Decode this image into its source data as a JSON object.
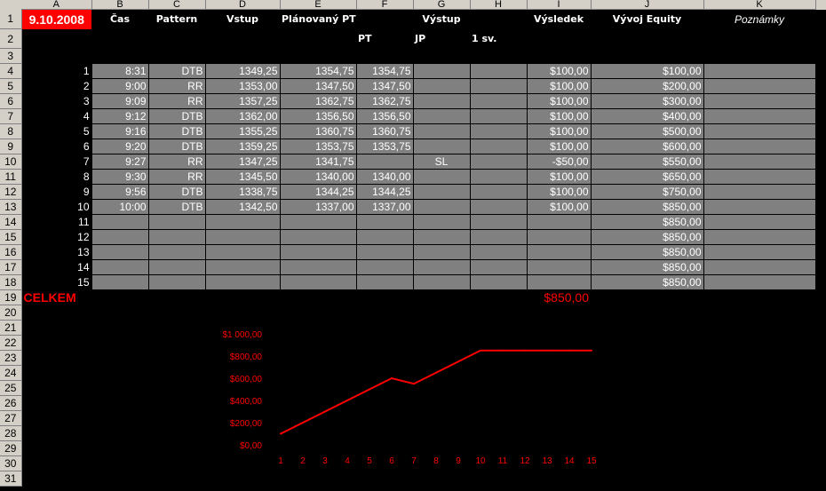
{
  "columns": [
    "A",
    "B",
    "C",
    "D",
    "E",
    "F",
    "G",
    "H",
    "I",
    "J",
    "K"
  ],
  "header": {
    "date": "9.10.2008",
    "cas": "Čas",
    "pattern": "Pattern",
    "vstup": "Vstup",
    "planovany": "Plánovaný PT",
    "vystup": "Výstup",
    "vysledek": "Výsledek",
    "equity": "Vývoj Equity",
    "poznamky": "Poznámky",
    "pt": "PT",
    "jp": "JP",
    "sv": "1 sv."
  },
  "trades": [
    {
      "n": "1",
      "cas": "8:31",
      "pattern": "DTB",
      "vstup": "1349,25",
      "plan": "1354,75",
      "pt": "1354,75",
      "jp": "",
      "sv": "",
      "vysledek": "$100,00",
      "equity": "$100,00"
    },
    {
      "n": "2",
      "cas": "9:00",
      "pattern": "RR",
      "vstup": "1353,00",
      "plan": "1347,50",
      "pt": "1347,50",
      "jp": "",
      "sv": "",
      "vysledek": "$100,00",
      "equity": "$200,00"
    },
    {
      "n": "3",
      "cas": "9:09",
      "pattern": "RR",
      "vstup": "1357,25",
      "plan": "1362,75",
      "pt": "1362,75",
      "jp": "",
      "sv": "",
      "vysledek": "$100,00",
      "equity": "$300,00"
    },
    {
      "n": "4",
      "cas": "9:12",
      "pattern": "DTB",
      "vstup": "1362,00",
      "plan": "1356,50",
      "pt": "1356,50",
      "jp": "",
      "sv": "",
      "vysledek": "$100,00",
      "equity": "$400,00"
    },
    {
      "n": "5",
      "cas": "9:16",
      "pattern": "DTB",
      "vstup": "1355,25",
      "plan": "1360,75",
      "pt": "1360,75",
      "jp": "",
      "sv": "",
      "vysledek": "$100,00",
      "equity": "$500,00"
    },
    {
      "n": "6",
      "cas": "9:20",
      "pattern": "DTB",
      "vstup": "1359,25",
      "plan": "1353,75",
      "pt": "1353,75",
      "jp": "",
      "sv": "",
      "vysledek": "$100,00",
      "equity": "$600,00"
    },
    {
      "n": "7",
      "cas": "9:27",
      "pattern": "RR",
      "vstup": "1347,25",
      "plan": "1341,75",
      "pt": "",
      "jp": "SL",
      "sv": "",
      "vysledek": "-$50,00",
      "equity": "$550,00"
    },
    {
      "n": "8",
      "cas": "9:30",
      "pattern": "RR",
      "vstup": "1345,50",
      "plan": "1340,00",
      "pt": "1340,00",
      "jp": "",
      "sv": "",
      "vysledek": "$100,00",
      "equity": "$650,00"
    },
    {
      "n": "9",
      "cas": "9:56",
      "pattern": "DTB",
      "vstup": "1338,75",
      "plan": "1344,25",
      "pt": "1344,25",
      "jp": "",
      "sv": "",
      "vysledek": "$100,00",
      "equity": "$750,00"
    },
    {
      "n": "10",
      "cas": "10:00",
      "pattern": "DTB",
      "vstup": "1342,50",
      "plan": "1337,00",
      "pt": "1337,00",
      "jp": "",
      "sv": "",
      "vysledek": "$100,00",
      "equity": "$850,00"
    },
    {
      "n": "11",
      "cas": "",
      "pattern": "",
      "vstup": "",
      "plan": "",
      "pt": "",
      "jp": "",
      "sv": "",
      "vysledek": "",
      "equity": "$850,00"
    },
    {
      "n": "12",
      "cas": "",
      "pattern": "",
      "vstup": "",
      "plan": "",
      "pt": "",
      "jp": "",
      "sv": "",
      "vysledek": "",
      "equity": "$850,00"
    },
    {
      "n": "13",
      "cas": "",
      "pattern": "",
      "vstup": "",
      "plan": "",
      "pt": "",
      "jp": "",
      "sv": "",
      "vysledek": "",
      "equity": "$850,00"
    },
    {
      "n": "14",
      "cas": "",
      "pattern": "",
      "vstup": "",
      "plan": "",
      "pt": "",
      "jp": "",
      "sv": "",
      "vysledek": "",
      "equity": "$850,00"
    },
    {
      "n": "15",
      "cas": "",
      "pattern": "",
      "vstup": "",
      "plan": "",
      "pt": "",
      "jp": "",
      "sv": "",
      "vysledek": "",
      "equity": "$850,00"
    }
  ],
  "total": {
    "label": "CELKEM",
    "value": "$850,00"
  },
  "colors": {
    "accent": "#ff0000",
    "cell_fill": "#808080",
    "background": "#000000"
  },
  "chart_data": {
    "type": "line",
    "categories": [
      "1",
      "2",
      "3",
      "4",
      "5",
      "6",
      "7",
      "8",
      "9",
      "10",
      "11",
      "12",
      "13",
      "14",
      "15"
    ],
    "values": [
      100,
      200,
      300,
      400,
      500,
      600,
      550,
      650,
      750,
      850,
      850,
      850,
      850,
      850,
      850
    ],
    "ylim": [
      0,
      1000
    ],
    "yticks": [
      "$0,00",
      "$200,00",
      "$400,00",
      "$600,00",
      "$800,00",
      "$1 000,00"
    ],
    "grid": false,
    "color": "#ff0000"
  }
}
